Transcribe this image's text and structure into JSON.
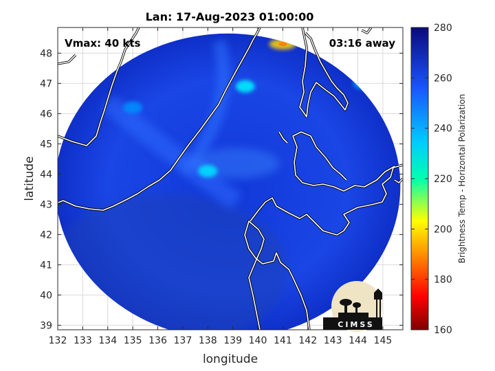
{
  "chart_data": {
    "type": "heatmap",
    "title": "Lan: 17-Aug-2023 01:00:00",
    "xlabel": "longitude",
    "ylabel": "latitude",
    "xlim": [
      132,
      145.8
    ],
    "ylim": [
      38.85,
      48.85
    ],
    "xticks": [
      132,
      133,
      134,
      135,
      136,
      137,
      138,
      139,
      140,
      141,
      142,
      143,
      144,
      145
    ],
    "yticks": [
      39,
      40,
      41,
      42,
      43,
      44,
      45,
      46,
      47,
      48
    ],
    "grid": true,
    "annotations": {
      "vmax": "Vmax: 40 kts",
      "distance": "03:16 away"
    },
    "colorbar": {
      "label": "Brightness Temp - Horizontal Polarization",
      "range": [
        160,
        280
      ],
      "ticks": [
        160,
        180,
        200,
        220,
        240,
        260,
        280
      ],
      "colormap": "jet"
    },
    "swath": {
      "center": [
        138.8,
        43.6
      ],
      "radius_lon": 6.9,
      "radius_lat": 5.05
    },
    "features": [
      {
        "lon": 141.0,
        "lat": 48.3,
        "value": 200
      },
      {
        "lon": 138.0,
        "lat": 44.1,
        "value": 238
      },
      {
        "lon": 135.0,
        "lat": 46.2,
        "value": 248
      },
      {
        "lon": 139.5,
        "lat": 46.9,
        "value": 236
      },
      {
        "lon": 144.2,
        "lat": 47.0,
        "value": 246
      }
    ]
  },
  "logo": {
    "text": "CIMSS"
  }
}
